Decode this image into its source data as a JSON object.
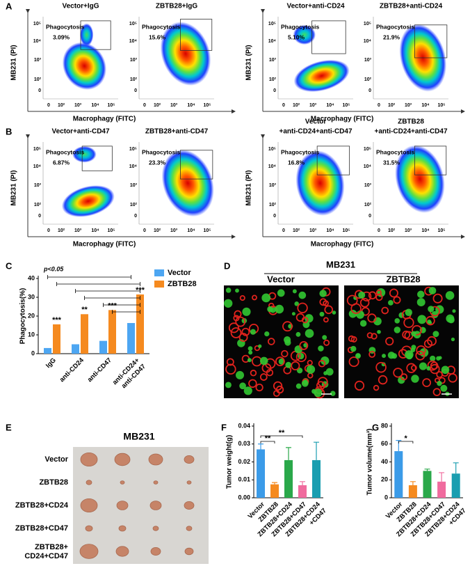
{
  "panels": {
    "flow": {
      "y_label": "MB231 (PI)",
      "x_label": "Macrophagy (FITC)",
      "gate_label": "Phagocytosis",
      "ticks": [
        "0",
        "10²",
        "10³",
        "10⁴",
        "10⁵"
      ]
    },
    "A": {
      "label": "A",
      "plots": [
        {
          "title": [
            "Vector+IgG"
          ],
          "percent": "3.09%"
        },
        {
          "title": [
            "ZBTB28+IgG"
          ],
          "percent": "15.6%"
        },
        {
          "title": [
            "Vector+anti-CD24"
          ],
          "percent": "5.10%"
        },
        {
          "title": [
            "ZBTB28+anti-CD24"
          ],
          "percent": "21.9%"
        }
      ]
    },
    "B": {
      "label": "B",
      "plots": [
        {
          "title": [
            "Vector+anti-CD47"
          ],
          "percent": "6.87%"
        },
        {
          "title": [
            "ZBTB28+anti-CD47"
          ],
          "percent": "23.3%"
        },
        {
          "title": [
            "Vector",
            "+anti-CD24+anti-CD47"
          ],
          "percent": "16.8%"
        },
        {
          "title": [
            "ZBTB28",
            "+anti-CD24+anti-CD47"
          ],
          "percent": "31.5%"
        }
      ]
    },
    "D": {
      "label": "D",
      "group": "MB231",
      "columns": [
        "Vector",
        "ZBTB28"
      ]
    },
    "E": {
      "label": "E",
      "title": "MB231",
      "rows": [
        [
          "Vector"
        ],
        [
          "ZBTB28"
        ],
        [
          "ZBTB28+CD24"
        ],
        [
          "ZBTB28+CD47"
        ],
        [
          "ZBTB28+",
          "CD24+CD47"
        ]
      ]
    }
  },
  "chart_data": [
    {
      "type": "bar",
      "panel_label": "C",
      "y_label": "Phagocytosis(%)",
      "annotation": "p<0.05",
      "categories": [
        [
          "IgG"
        ],
        [
          "anti-CD24"
        ],
        [
          "anti-CD47"
        ],
        [
          "anti-CD24+",
          "anti-CD47"
        ]
      ],
      "series": [
        {
          "name": "Vector",
          "color": "#4da6f2",
          "values": [
            3,
            5,
            6.8,
            16.3
          ]
        },
        {
          "name": "ZBTB28",
          "color": "#f58a1f",
          "values": [
            15.6,
            21,
            23.2,
            31.5
          ]
        }
      ],
      "significance": [
        "***",
        "**",
        "***",
        "***"
      ],
      "ylim": [
        0,
        40
      ],
      "yticks": [
        0,
        10,
        20,
        30,
        40
      ]
    },
    {
      "type": "bar",
      "panel_label": "F",
      "y_label": "Tumor weight(g)",
      "categories": [
        [
          "Vector"
        ],
        [
          "ZBTB28"
        ],
        [
          "ZBTB28+CD24"
        ],
        [
          "ZBTB28+CD47"
        ],
        [
          "ZBTB28+CD24",
          "+CD47"
        ]
      ],
      "colors": [
        "#3b9be8",
        "#f58a1f",
        "#2aa84a",
        "#f06b9e",
        "#1a9eb0"
      ],
      "values": [
        0.027,
        0.0075,
        0.021,
        0.007,
        0.021
      ],
      "errors": [
        0.003,
        0.001,
        0.007,
        0.002,
        0.01
      ],
      "significance": [
        "**",
        "**"
      ],
      "ylim": [
        0,
        0.04
      ],
      "yticks": [
        {
          "value": 0,
          "label": "0.00"
        },
        {
          "value": 0.01,
          "label": "0.01"
        },
        {
          "value": 0.02,
          "label": "0.02"
        },
        {
          "value": 0.03,
          "label": "0.03"
        },
        {
          "value": 0.04,
          "label": "0.04"
        }
      ]
    },
    {
      "type": "bar",
      "panel_label": "G",
      "y_label": "Tumor volume(mm³)",
      "categories": [
        [
          "Vector"
        ],
        [
          "ZBTB28"
        ],
        [
          "ZBTB28+CD24"
        ],
        [
          "ZBTB28+CD47"
        ],
        [
          "ZBTB28+CD24",
          "+CD47"
        ]
      ],
      "colors": [
        "#3b9be8",
        "#f58a1f",
        "#2aa84a",
        "#f06b9e",
        "#1a9eb0"
      ],
      "values": [
        52,
        14,
        30,
        18,
        27
      ],
      "errors": [
        12,
        4,
        2,
        10,
        12
      ],
      "significance": [
        "*"
      ],
      "ylim": [
        0,
        80
      ],
      "yticks": [
        0,
        20,
        40,
        60,
        80
      ]
    }
  ]
}
